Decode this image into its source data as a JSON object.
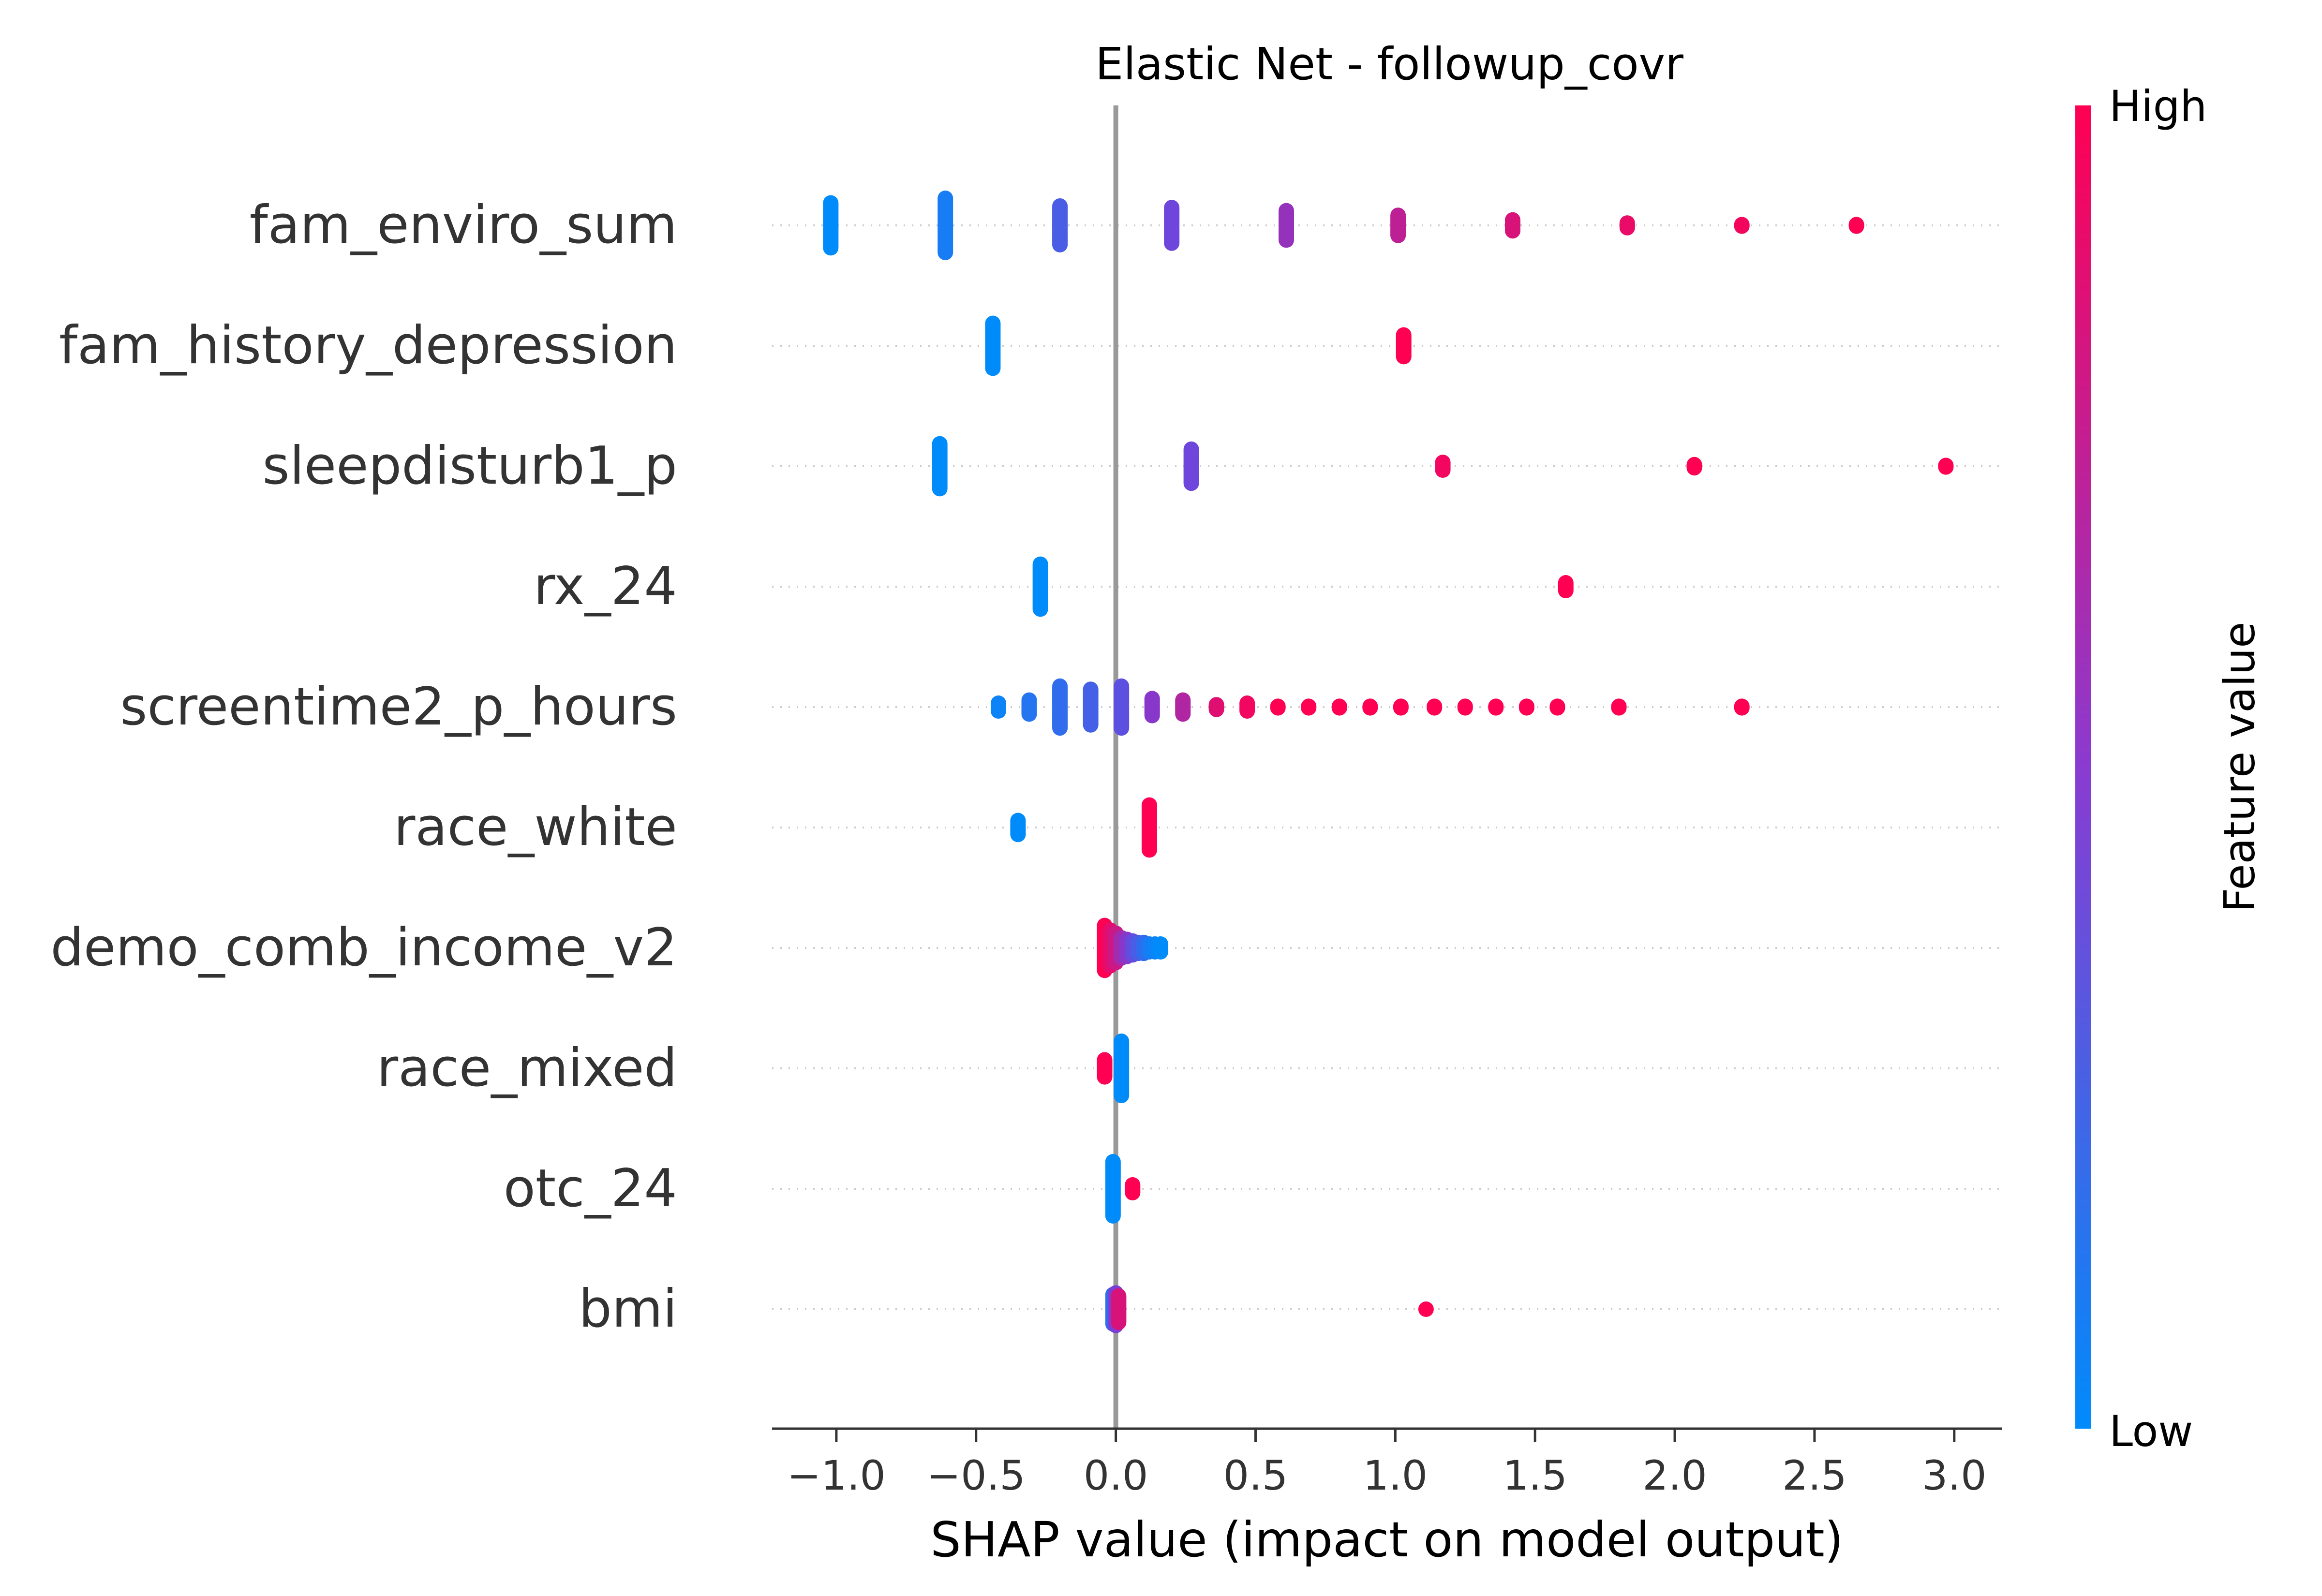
{
  "chart_data": {
    "type": "scatter",
    "title": "Elastic Net - followup_covr",
    "xlabel": "SHAP value (impact on model output)",
    "xlim": [
      -1.23,
      3.17
    ],
    "xticks": [
      -1.0,
      -0.5,
      0.0,
      0.5,
      1.0,
      1.5,
      2.0,
      2.5,
      3.0
    ],
    "xtick_labels": [
      "−1.0",
      "−0.5",
      "0.0",
      "0.5",
      "1.0",
      "1.5",
      "2.0",
      "2.5",
      "3.0"
    ],
    "colorbar": {
      "label": "Feature value",
      "high_label": "High",
      "low_label": "Low"
    },
    "colors": {
      "low": "#008bfb",
      "mid": "#7a3ed7",
      "high": "#ff0052",
      "axis": "#333333",
      "zero_line": "#999999",
      "grid": "#cccccc"
    },
    "features": [
      {
        "name": "fam_enviro_sum",
        "points": [
          {
            "x": -1.02,
            "v": 0.0,
            "n": 30
          },
          {
            "x": -0.61,
            "v": 0.1,
            "n": 36
          },
          {
            "x": -0.2,
            "v": 0.3,
            "n": 26
          },
          {
            "x": 0.2,
            "v": 0.45,
            "n": 24
          },
          {
            "x": 0.61,
            "v": 0.6,
            "n": 20
          },
          {
            "x": 1.01,
            "v": 0.75,
            "n": 14
          },
          {
            "x": 1.42,
            "v": 0.85,
            "n": 8
          },
          {
            "x": 1.83,
            "v": 0.92,
            "n": 4
          },
          {
            "x": 2.24,
            "v": 0.96,
            "n": 2
          },
          {
            "x": 2.65,
            "v": 1.0,
            "n": 2
          }
        ]
      },
      {
        "name": "fam_history_depression",
        "points": [
          {
            "x": -0.44,
            "v": 0.0,
            "n": 30
          },
          {
            "x": 1.03,
            "v": 1.0,
            "n": 15
          }
        ]
      },
      {
        "name": "sleepdisturb1_p",
        "points": [
          {
            "x": -0.63,
            "v": 0.0,
            "n": 30
          },
          {
            "x": 0.27,
            "v": 0.45,
            "n": 23
          },
          {
            "x": 1.17,
            "v": 0.95,
            "n": 6
          },
          {
            "x": 2.07,
            "v": 1.0,
            "n": 3
          },
          {
            "x": 2.97,
            "v": 1.0,
            "n": 2
          }
        ]
      },
      {
        "name": "rx_24",
        "points": [
          {
            "x": -0.27,
            "v": 0.0,
            "n": 30
          },
          {
            "x": 1.61,
            "v": 1.0,
            "n": 6
          }
        ]
      },
      {
        "name": "screentime2_p_hours",
        "points": [
          {
            "x": -0.42,
            "v": 0.05,
            "n": 6
          },
          {
            "x": -0.31,
            "v": 0.15,
            "n": 10
          },
          {
            "x": -0.2,
            "v": 0.2,
            "n": 28
          },
          {
            "x": -0.09,
            "v": 0.28,
            "n": 24
          },
          {
            "x": 0.02,
            "v": 0.38,
            "n": 28
          },
          {
            "x": 0.13,
            "v": 0.55,
            "n": 12
          },
          {
            "x": 0.24,
            "v": 0.7,
            "n": 10
          },
          {
            "x": 0.36,
            "v": 0.88,
            "n": 4
          },
          {
            "x": 0.47,
            "v": 0.95,
            "n": 6
          },
          {
            "x": 0.58,
            "v": 1.0,
            "n": 2
          },
          {
            "x": 0.69,
            "v": 1.0,
            "n": 2
          },
          {
            "x": 0.8,
            "v": 1.0,
            "n": 2
          },
          {
            "x": 0.91,
            "v": 1.0,
            "n": 2
          },
          {
            "x": 1.02,
            "v": 1.0,
            "n": 2
          },
          {
            "x": 1.14,
            "v": 1.0,
            "n": 2
          },
          {
            "x": 1.25,
            "v": 1.0,
            "n": 2
          },
          {
            "x": 1.36,
            "v": 1.0,
            "n": 2
          },
          {
            "x": 1.47,
            "v": 1.0,
            "n": 2
          },
          {
            "x": 1.58,
            "v": 1.0,
            "n": 2
          },
          {
            "x": 1.8,
            "v": 1.0,
            "n": 2
          },
          {
            "x": 2.24,
            "v": 1.0,
            "n": 2
          }
        ]
      },
      {
        "name": "race_white",
        "points": [
          {
            "x": -0.35,
            "v": 0.0,
            "n": 10
          },
          {
            "x": 0.12,
            "v": 1.0,
            "n": 30
          }
        ]
      },
      {
        "name": "demo_comb_income_v2",
        "points": [
          {
            "x": -0.04,
            "v": 1.0,
            "n": 30
          },
          {
            "x": -0.02,
            "v": 0.9,
            "n": 24
          },
          {
            "x": 0.0,
            "v": 0.8,
            "n": 20
          },
          {
            "x": 0.02,
            "v": 0.65,
            "n": 14
          },
          {
            "x": 0.04,
            "v": 0.55,
            "n": 12
          },
          {
            "x": 0.06,
            "v": 0.4,
            "n": 10
          },
          {
            "x": 0.08,
            "v": 0.3,
            "n": 8
          },
          {
            "x": 0.1,
            "v": 0.2,
            "n": 8
          },
          {
            "x": 0.12,
            "v": 0.1,
            "n": 6
          },
          {
            "x": 0.14,
            "v": 0.05,
            "n": 6
          },
          {
            "x": 0.16,
            "v": 0.0,
            "n": 6
          }
        ]
      },
      {
        "name": "race_mixed",
        "points": [
          {
            "x": -0.04,
            "v": 1.0,
            "n": 12
          },
          {
            "x": 0.02,
            "v": 0.0,
            "n": 36
          }
        ]
      },
      {
        "name": "otc_24",
        "points": [
          {
            "x": -0.01,
            "v": 0.0,
            "n": 36
          },
          {
            "x": 0.06,
            "v": 1.0,
            "n": 6
          }
        ]
      },
      {
        "name": "bmi",
        "points": [
          {
            "x": -0.01,
            "v": 0.2,
            "n": 20
          },
          {
            "x": 0.0,
            "v": 0.5,
            "n": 22
          },
          {
            "x": 0.01,
            "v": 0.85,
            "n": 18
          },
          {
            "x": 1.11,
            "v": 1.0,
            "n": 1
          }
        ]
      }
    ]
  }
}
